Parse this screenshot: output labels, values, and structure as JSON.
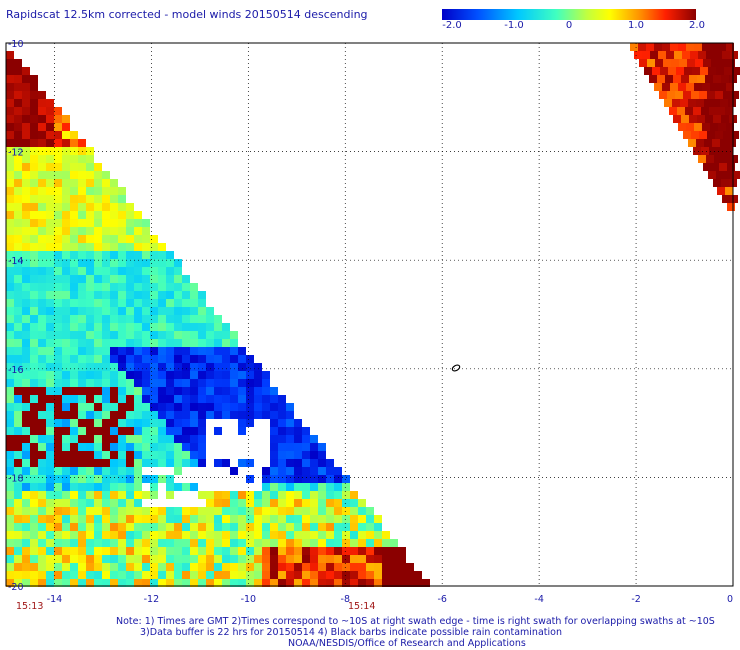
{
  "title": "Rapidscat 12.5km corrected - model winds 20150514 descending",
  "colorbar": {
    "ticks": [
      "-2.0",
      "-1.0",
      "0",
      "1.0",
      "2.0"
    ],
    "range": [
      -2.0,
      2.0
    ],
    "colors": [
      "#0000c8",
      "#0060ff",
      "#00e0ff",
      "#80ff80",
      "#ffff00",
      "#ff9000",
      "#ff2000",
      "#8b0000"
    ]
  },
  "map": {
    "lat_range": [
      -20,
      -10
    ],
    "lon_range": [
      -15,
      0
    ],
    "lat_labels": [
      "-10",
      "-12",
      "-14",
      "-16",
      "-18",
      "-20"
    ],
    "lon_labels": [
      "-14",
      "-12",
      "-10",
      "-8",
      "-6",
      "-4",
      "-2",
      "0"
    ],
    "time_labels": [
      "15:13",
      "15:14"
    ],
    "grid": "dotted"
  },
  "notes": {
    "line1": "Note: 1) Times are GMT 2)Times correspond to ~10S at right swath edge - time is right swath for overlapping swaths at ~10S",
    "line2": "3)Data buffer is 22 hrs for 20150514 4) Black barbs indicate possible rain contamination",
    "line3": "NOAA/NESDIS/Office of Research and Applications"
  }
}
